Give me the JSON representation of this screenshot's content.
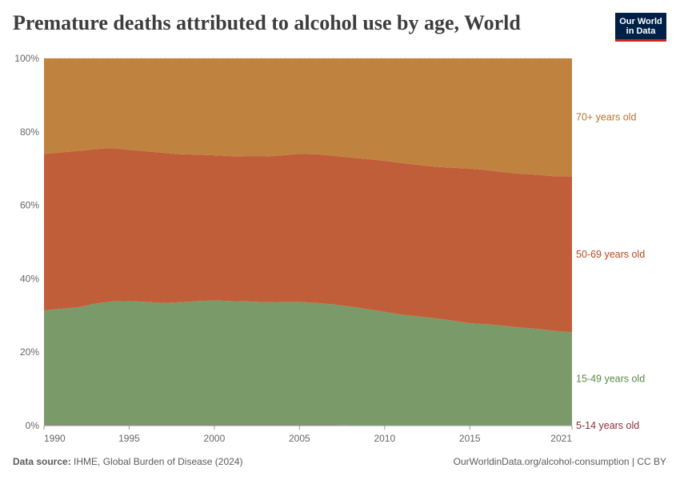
{
  "header": {
    "title": "Premature deaths attributed to alcohol use by age, World",
    "logo_line1": "Our World",
    "logo_line2": "in Data"
  },
  "footer": {
    "source_label": "Data source:",
    "source_text": "IHME, Global Burden of Disease (2024)",
    "url_text": "OurWorldinData.org/alcohol-consumption | CC BY"
  },
  "chart_data": {
    "type": "area",
    "stacked": true,
    "normalized": true,
    "x": [
      1990,
      1991,
      1992,
      1993,
      1994,
      1995,
      1996,
      1997,
      1998,
      1999,
      2000,
      2001,
      2002,
      2003,
      2004,
      2005,
      2006,
      2007,
      2008,
      2009,
      2010,
      2011,
      2012,
      2013,
      2014,
      2015,
      2016,
      2017,
      2018,
      2019,
      2020,
      2021
    ],
    "x_ticks": [
      "1990",
      "1995",
      "2000",
      "2005",
      "2010",
      "2015",
      "2021"
    ],
    "y_ticks": [
      "0%",
      "20%",
      "40%",
      "60%",
      "80%",
      "100%"
    ],
    "ylim": [
      0,
      100
    ],
    "grid": "horizontal",
    "legend": "right",
    "series": [
      {
        "name": "5-14 years old",
        "color": "#8c2e3d",
        "values": [
          0.2,
          0.2,
          0.2,
          0.2,
          0.2,
          0.2,
          0.2,
          0.2,
          0.2,
          0.2,
          0.2,
          0.2,
          0.2,
          0.2,
          0.2,
          0.2,
          0.2,
          0.2,
          0.1,
          0.1,
          0.1,
          0.1,
          0.1,
          0.1,
          0.1,
          0.1,
          0.1,
          0.1,
          0.1,
          0.1,
          0.1,
          0.1
        ]
      },
      {
        "name": "15-49 years old",
        "color": "#7a9a6a",
        "values": [
          31.2,
          31.6,
          32.0,
          33.0,
          33.6,
          33.7,
          33.5,
          33.2,
          33.4,
          33.7,
          33.9,
          33.7,
          33.6,
          33.4,
          33.5,
          33.5,
          33.2,
          32.8,
          32.3,
          31.6,
          30.9,
          30.1,
          29.6,
          29.1,
          28.5,
          27.8,
          27.5,
          27.1,
          26.6,
          26.2,
          25.7,
          25.3
        ]
      },
      {
        "name": "50-69 years old",
        "color": "#c15e3a",
        "values": [
          42.6,
          42.6,
          42.6,
          42.1,
          41.8,
          41.2,
          41.0,
          40.9,
          40.3,
          39.9,
          39.5,
          39.5,
          39.5,
          39.7,
          39.9,
          40.3,
          40.5,
          40.5,
          40.6,
          40.9,
          41.1,
          41.3,
          41.3,
          41.3,
          41.6,
          42.1,
          42.0,
          41.8,
          41.9,
          42.0,
          42.1,
          42.5
        ]
      },
      {
        "name": "70+ years old",
        "color": "#c0823f",
        "values": [
          26.0,
          25.6,
          25.2,
          24.7,
          24.4,
          24.9,
          25.3,
          25.7,
          26.1,
          26.2,
          26.4,
          26.6,
          26.7,
          26.7,
          26.4,
          26.0,
          26.1,
          26.5,
          27.0,
          27.4,
          27.9,
          28.5,
          29.0,
          29.5,
          29.8,
          30.0,
          30.4,
          31.0,
          31.4,
          31.7,
          32.1,
          32.1
        ]
      }
    ],
    "label_colors": {
      "5-14 years old": "#8c2e3d",
      "15-49 years old": "#5a8a45",
      "50-69 years old": "#b6481f",
      "70+ years old": "#b8732a"
    }
  }
}
